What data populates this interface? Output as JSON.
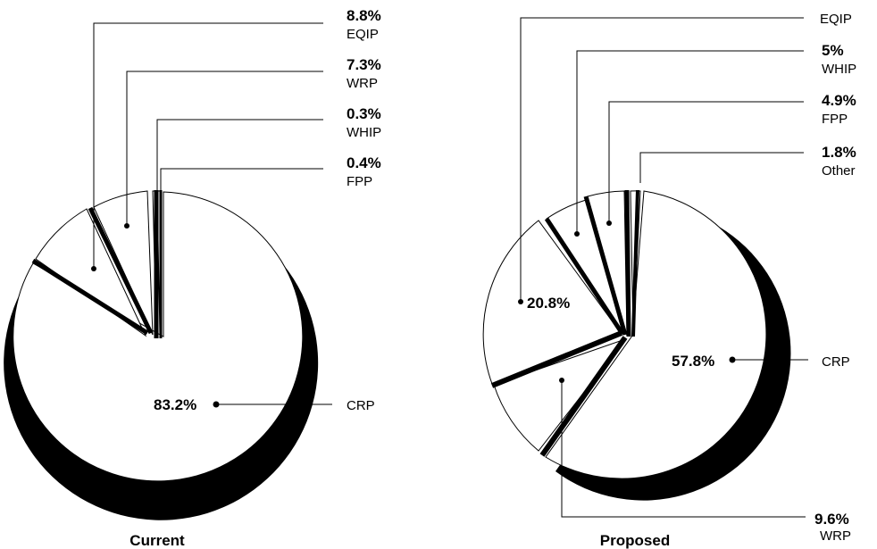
{
  "chart_data": [
    {
      "type": "pie",
      "title": "Current",
      "slices": [
        {
          "label": "CRP",
          "value": 83.2,
          "value_text": "83.2%"
        },
        {
          "label": "EQIP",
          "value": 8.8,
          "value_text": "8.8%"
        },
        {
          "label": "WRP",
          "value": 7.3,
          "value_text": "7.3%"
        },
        {
          "label": "WHIP",
          "value": 0.3,
          "value_text": "0.3%"
        },
        {
          "label": "FPP",
          "value": 0.4,
          "value_text": "0.4%"
        }
      ]
    },
    {
      "type": "pie",
      "title": "Proposed",
      "slices": [
        {
          "label": "CRP",
          "value": 57.8,
          "value_text": "57.8%"
        },
        {
          "label": "WRP",
          "value": 9.6,
          "value_text": "9.6%"
        },
        {
          "label": "EQIP",
          "value": 20.8,
          "value_text": "20.8%"
        },
        {
          "label": "WHIP",
          "value": 5,
          "value_text": "5%"
        },
        {
          "label": "FPP",
          "value": 4.9,
          "value_text": "4.9%"
        },
        {
          "label": "Other",
          "value": 1.8,
          "value_text": "1.8%"
        }
      ]
    }
  ]
}
